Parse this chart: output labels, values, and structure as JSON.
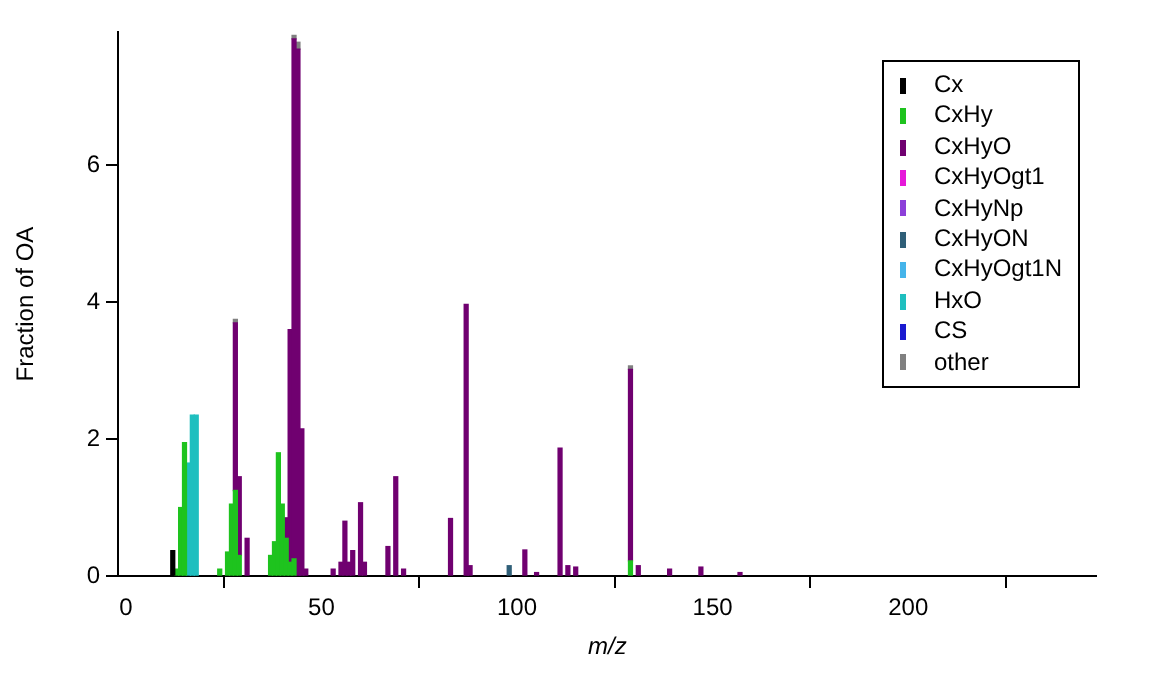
{
  "chart_data": {
    "type": "bar",
    "stacked": true,
    "xlabel": "m/z",
    "ylabel": "Fraction of OA",
    "x": [
      12,
      13,
      14,
      15,
      16,
      17,
      18,
      24,
      26,
      27,
      28,
      29,
      31,
      37,
      38,
      39,
      40,
      41,
      42,
      43,
      44,
      45,
      46,
      53,
      55,
      56,
      57,
      58,
      60,
      61,
      67,
      69,
      71,
      83,
      87,
      88,
      98,
      102,
      105,
      111,
      113,
      115,
      129,
      131,
      139,
      147,
      157
    ],
    "series": [
      {
        "name": "Cx",
        "color": "#000000",
        "values": [
          0.37,
          null,
          null,
          null,
          null,
          null,
          null,
          null,
          null,
          null,
          null,
          null,
          null,
          null,
          null,
          null,
          null,
          null,
          null,
          null,
          null,
          null,
          null,
          null,
          null,
          null,
          null,
          null,
          null,
          null,
          null,
          null,
          null,
          null,
          null,
          null,
          null,
          null,
          null,
          null,
          null,
          null,
          null,
          null,
          null,
          null,
          null
        ]
      },
      {
        "name": "CxHy",
        "color": "#1ec31e",
        "values": [
          null,
          0.1,
          1.0,
          1.95,
          null,
          null,
          null,
          0.1,
          0.35,
          1.05,
          1.25,
          0.3,
          null,
          0.3,
          0.5,
          1.8,
          1.05,
          0.55,
          0.2,
          0.25,
          null,
          null,
          null,
          null,
          null,
          null,
          null,
          null,
          null,
          null,
          null,
          null,
          null,
          null,
          null,
          null,
          null,
          null,
          null,
          null,
          null,
          null,
          0.22,
          null,
          null,
          null,
          null
        ]
      },
      {
        "name": "CxHyO",
        "color": "#700070",
        "values": [
          null,
          null,
          null,
          null,
          null,
          null,
          null,
          null,
          null,
          null,
          2.45,
          1.15,
          0.55,
          null,
          null,
          null,
          null,
          0.3,
          3.4,
          7.6,
          7.7,
          2.15,
          0.1,
          0.1,
          0.2,
          0.8,
          0.2,
          0.37,
          1.07,
          0.2,
          0.43,
          1.45,
          0.1,
          0.84,
          3.97,
          0.15,
          null,
          0.38,
          0.05,
          1.87,
          0.15,
          0.13,
          2.8,
          0.15,
          0.1,
          0.13,
          0.05
        ]
      },
      {
        "name": "CxHyOgt1",
        "color": "#e619d9",
        "values": [
          null,
          null,
          null,
          null,
          null,
          null,
          null,
          null,
          null,
          null,
          null,
          null,
          null,
          null,
          null,
          null,
          null,
          null,
          null,
          null,
          null,
          null,
          null,
          null,
          null,
          null,
          null,
          null,
          null,
          null,
          null,
          null,
          null,
          null,
          null,
          null,
          null,
          null,
          null,
          null,
          null,
          null,
          null,
          null,
          null,
          null,
          null
        ]
      },
      {
        "name": "CxHyNp",
        "color": "#8c3fd9",
        "values": [
          null,
          null,
          null,
          null,
          null,
          null,
          null,
          null,
          null,
          null,
          null,
          null,
          null,
          null,
          null,
          null,
          null,
          null,
          null,
          null,
          null,
          null,
          null,
          null,
          null,
          null,
          null,
          null,
          null,
          null,
          null,
          null,
          null,
          null,
          null,
          null,
          null,
          null,
          null,
          null,
          null,
          null,
          null,
          null,
          null,
          null,
          null
        ]
      },
      {
        "name": "CxHyON",
        "color": "#2f5f78",
        "values": [
          null,
          null,
          null,
          null,
          null,
          null,
          null,
          null,
          null,
          null,
          null,
          null,
          null,
          null,
          null,
          null,
          null,
          null,
          null,
          null,
          null,
          null,
          null,
          null,
          null,
          null,
          null,
          null,
          null,
          null,
          null,
          null,
          null,
          null,
          null,
          null,
          0.15,
          null,
          null,
          null,
          null,
          null,
          null,
          null,
          null,
          null,
          null
        ]
      },
      {
        "name": "CxHyOgt1N",
        "color": "#45b4ea",
        "values": [
          null,
          null,
          null,
          null,
          null,
          null,
          null,
          null,
          null,
          null,
          null,
          null,
          null,
          null,
          null,
          null,
          null,
          null,
          null,
          null,
          null,
          null,
          null,
          null,
          null,
          null,
          null,
          null,
          null,
          null,
          null,
          null,
          null,
          null,
          null,
          null,
          null,
          null,
          null,
          null,
          null,
          null,
          null,
          null,
          null,
          null,
          null
        ]
      },
      {
        "name": "HxO",
        "color": "#1fbfbf",
        "values": [
          null,
          null,
          null,
          null,
          1.65,
          2.35,
          2.35,
          null,
          null,
          null,
          null,
          null,
          null,
          null,
          null,
          null,
          null,
          null,
          null,
          null,
          null,
          null,
          null,
          null,
          null,
          null,
          null,
          null,
          null,
          null,
          null,
          null,
          null,
          null,
          null,
          null,
          null,
          null,
          null,
          null,
          null,
          null,
          null,
          null,
          null,
          null,
          null
        ]
      },
      {
        "name": "CS",
        "color": "#1a1ad0",
        "values": [
          null,
          null,
          null,
          null,
          null,
          null,
          null,
          null,
          null,
          null,
          null,
          null,
          null,
          null,
          null,
          null,
          null,
          null,
          null,
          null,
          null,
          null,
          null,
          null,
          null,
          null,
          null,
          null,
          null,
          null,
          null,
          null,
          null,
          null,
          null,
          null,
          null,
          null,
          null,
          null,
          null,
          null,
          null,
          null,
          null,
          null,
          null
        ]
      },
      {
        "name": "other",
        "color": "#808080",
        "values": [
          null,
          null,
          null,
          null,
          null,
          null,
          null,
          null,
          null,
          null,
          0.05,
          null,
          null,
          null,
          null,
          null,
          null,
          null,
          null,
          0.05,
          0.1,
          null,
          null,
          null,
          null,
          null,
          null,
          null,
          null,
          null,
          null,
          null,
          null,
          null,
          null,
          null,
          null,
          null,
          null,
          null,
          null,
          null,
          0.05,
          null,
          null,
          null,
          null
        ]
      }
    ],
    "xlim": [
      -2,
      248
    ],
    "xticks": [
      0,
      50,
      100,
      150,
      200
    ],
    "ylim": [
      0,
      7.95
    ],
    "yticks": [
      0,
      2,
      4,
      6
    ],
    "grid": false,
    "legend": "top right"
  }
}
